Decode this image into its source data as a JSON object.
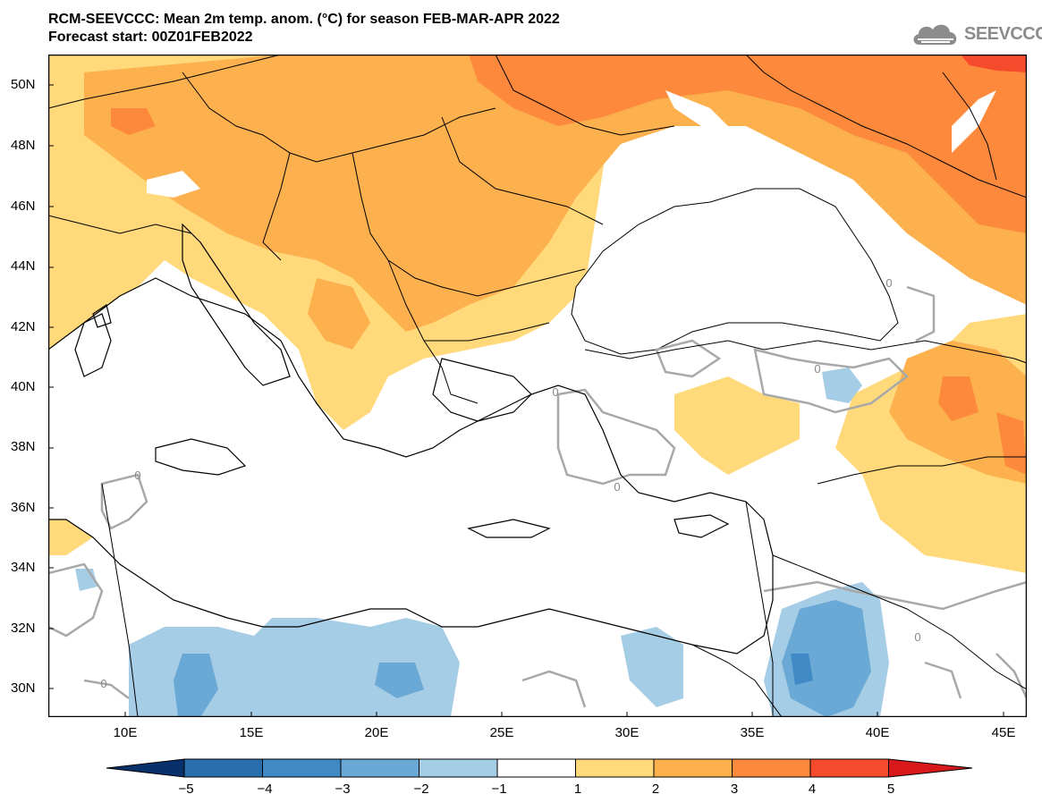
{
  "title": {
    "line1": "RCM-SEEVCCC: Mean 2m temp. anom. (°C) for season FEB-MAR-APR 2022",
    "line2": "Forecast start: 00Z01FEB2022"
  },
  "logo": {
    "text": "SEEVCCC",
    "icon": "cloud-icon",
    "color": "#8c8c8c"
  },
  "map": {
    "lat_ticks": [
      "50N",
      "48N",
      "46N",
      "44N",
      "42N",
      "40N",
      "38N",
      "36N",
      "34N",
      "32N",
      "30N"
    ],
    "lon_ticks": [
      "10E",
      "15E",
      "20E",
      "25E",
      "30E",
      "35E",
      "40E",
      "45E"
    ],
    "contour_labels": [
      "0",
      "0",
      "0",
      "0",
      "0",
      "0",
      "0"
    ]
  },
  "colorbar": {
    "labels": [
      "−5",
      "−4",
      "−3",
      "−2",
      "−1",
      "1",
      "2",
      "3",
      "4",
      "5"
    ],
    "colors": [
      "#08306b",
      "#2a6fad",
      "#3f8ac4",
      "#6aa8d6",
      "#a6cde6",
      "#ffffff",
      "#ffd97a",
      "#fdb04e",
      "#fd8a3c",
      "#f54a2c",
      "#d7191c"
    ]
  }
}
